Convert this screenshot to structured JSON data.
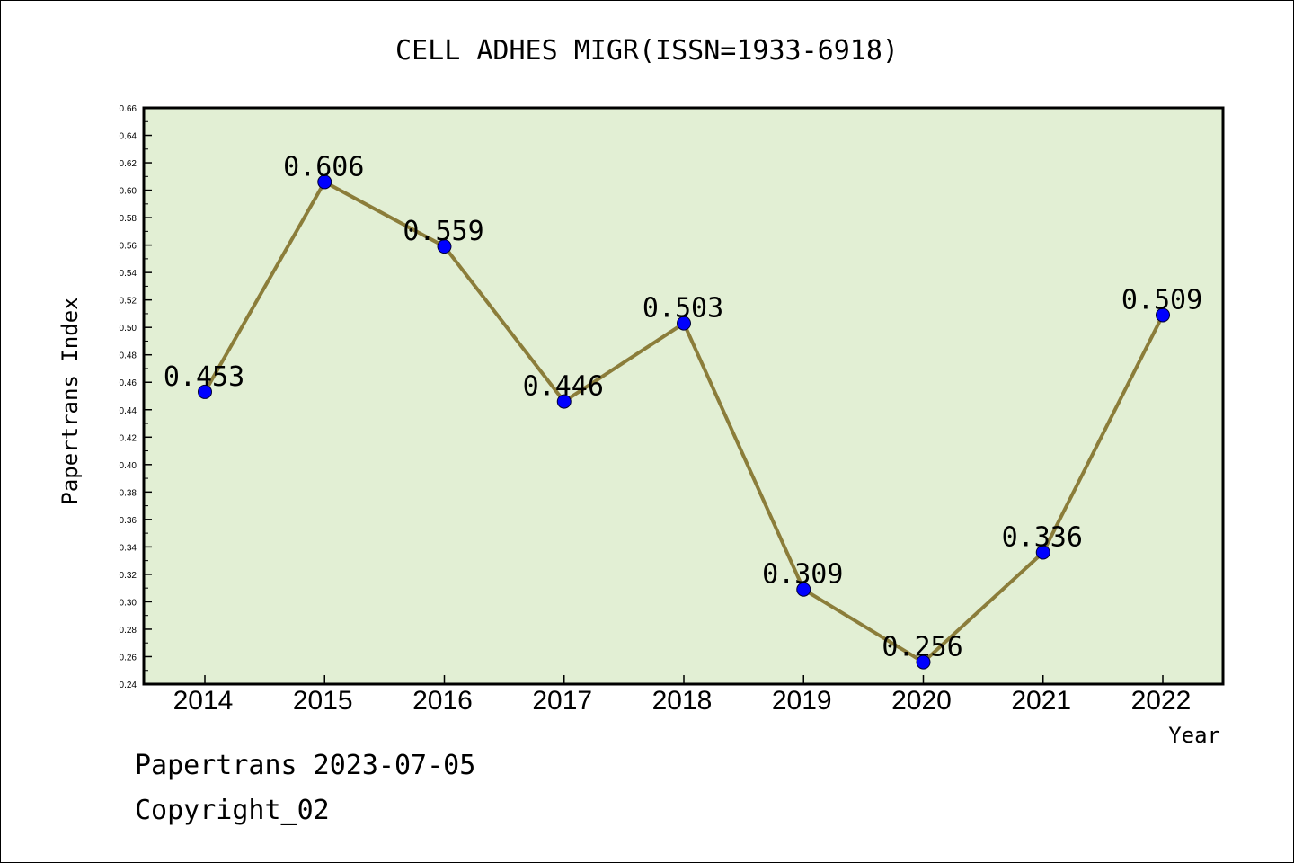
{
  "chart_data": {
    "type": "line",
    "title": "CELL ADHES MIGR(ISSN=1933-6918)",
    "xlabel": "Year",
    "ylabel": "Papertrans Index",
    "categories": [
      "2014",
      "2015",
      "2016",
      "2017",
      "2018",
      "2019",
      "2020",
      "2021",
      "2022"
    ],
    "values": [
      0.453,
      0.606,
      0.559,
      0.446,
      0.503,
      0.309,
      0.256,
      0.336,
      0.509
    ],
    "data_labels": [
      "0.453",
      "0.606",
      "0.559",
      "0.446",
      "0.503",
      "0.309",
      "0.256",
      "0.336",
      "0.509"
    ],
    "ylim": [
      0.24,
      0.66
    ],
    "y_ticks": [
      "0.24",
      "0.26",
      "0.28",
      "0.30",
      "0.32",
      "0.34",
      "0.36",
      "0.38",
      "0.40",
      "0.42",
      "0.44",
      "0.46",
      "0.48",
      "0.50",
      "0.52",
      "0.54",
      "0.56",
      "0.58",
      "0.60",
      "0.62",
      "0.64",
      "0.66"
    ],
    "grid": false,
    "colors": {
      "plot_background": "#e2efd4",
      "line": "#8b7d3a",
      "marker": "#0000ff"
    }
  },
  "footer": {
    "line1": "Papertrans 2023-07-05",
    "line2": "Copyright_02"
  }
}
